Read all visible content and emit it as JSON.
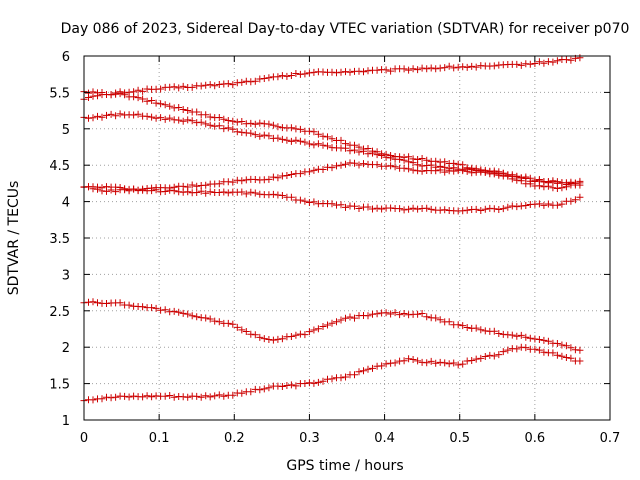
{
  "chart_data": {
    "type": "scatter",
    "title": "Day 086 of 2023, Sidereal Day-to-day VTEC variation (SDTVAR) for receiver p070",
    "xlabel": "GPS time / hours",
    "ylabel": "SDTVAR / TECUs",
    "xlim": [
      0,
      0.7
    ],
    "ylim": [
      1,
      6
    ],
    "x_ticks": [
      "0",
      "0.1",
      "0.2",
      "0.3",
      "0.4",
      "0.5",
      "0.6",
      "0.7"
    ],
    "y_ticks": [
      "1",
      "1.5",
      "2",
      "2.5",
      "3",
      "3.5",
      "4",
      "4.5",
      "5",
      "5.5",
      "6"
    ],
    "grid": true,
    "marker": "+",
    "color": "#cc0000",
    "series_control_points": [
      {
        "name": "series-1",
        "points": [
          [
            0,
            5.42
          ],
          [
            0.05,
            5.5
          ],
          [
            0.1,
            5.55
          ],
          [
            0.2,
            5.62
          ],
          [
            0.25,
            5.7
          ],
          [
            0.3,
            5.77
          ],
          [
            0.4,
            5.8
          ],
          [
            0.45,
            5.83
          ],
          [
            0.5,
            5.85
          ],
          [
            0.55,
            5.86
          ],
          [
            0.6,
            5.9
          ],
          [
            0.66,
            5.97
          ]
        ]
      },
      {
        "name": "series-2",
        "points": [
          [
            0,
            5.5
          ],
          [
            0.05,
            5.47
          ],
          [
            0.1,
            5.35
          ],
          [
            0.15,
            5.22
          ],
          [
            0.2,
            5.1
          ],
          [
            0.25,
            5.05
          ],
          [
            0.3,
            4.97
          ],
          [
            0.35,
            4.8
          ],
          [
            0.4,
            4.65
          ],
          [
            0.45,
            4.58
          ],
          [
            0.5,
            4.5
          ],
          [
            0.55,
            4.4
          ],
          [
            0.6,
            4.28
          ],
          [
            0.66,
            4.22
          ]
        ]
      },
      {
        "name": "series-3",
        "points": [
          [
            0,
            5.15
          ],
          [
            0.03,
            5.18
          ],
          [
            0.06,
            5.2
          ],
          [
            0.1,
            5.15
          ],
          [
            0.15,
            5.1
          ],
          [
            0.2,
            4.98
          ],
          [
            0.25,
            4.88
          ],
          [
            0.3,
            4.8
          ],
          [
            0.35,
            4.72
          ],
          [
            0.4,
            4.62
          ],
          [
            0.45,
            4.5
          ],
          [
            0.5,
            4.45
          ],
          [
            0.55,
            4.4
          ],
          [
            0.6,
            4.3
          ],
          [
            0.66,
            4.25
          ]
        ]
      },
      {
        "name": "series-4",
        "points": [
          [
            0,
            4.2
          ],
          [
            0.03,
            4.15
          ],
          [
            0.05,
            4.15
          ],
          [
            0.1,
            4.18
          ],
          [
            0.15,
            4.22
          ],
          [
            0.2,
            4.28
          ],
          [
            0.25,
            4.32
          ],
          [
            0.3,
            4.42
          ],
          [
            0.35,
            4.52
          ],
          [
            0.4,
            4.5
          ],
          [
            0.45,
            4.42
          ],
          [
            0.5,
            4.42
          ],
          [
            0.55,
            4.38
          ],
          [
            0.6,
            4.22
          ],
          [
            0.63,
            4.18
          ],
          [
            0.66,
            4.27
          ]
        ]
      },
      {
        "name": "series-5",
        "points": [
          [
            0,
            4.2
          ],
          [
            0.03,
            4.2
          ],
          [
            0.05,
            4.18
          ],
          [
            0.1,
            4.15
          ],
          [
            0.15,
            4.13
          ],
          [
            0.2,
            4.13
          ],
          [
            0.25,
            4.1
          ],
          [
            0.3,
            4.0
          ],
          [
            0.35,
            3.93
          ],
          [
            0.4,
            3.9
          ],
          [
            0.45,
            3.9
          ],
          [
            0.5,
            3.88
          ],
          [
            0.55,
            3.9
          ],
          [
            0.6,
            3.97
          ],
          [
            0.63,
            3.95
          ],
          [
            0.66,
            4.05
          ]
        ]
      },
      {
        "name": "series-6",
        "points": [
          [
            0,
            2.62
          ],
          [
            0.05,
            2.6
          ],
          [
            0.1,
            2.52
          ],
          [
            0.15,
            2.42
          ],
          [
            0.2,
            2.3
          ],
          [
            0.23,
            2.15
          ],
          [
            0.25,
            2.1
          ],
          [
            0.3,
            2.2
          ],
          [
            0.35,
            2.4
          ],
          [
            0.4,
            2.47
          ],
          [
            0.45,
            2.45
          ],
          [
            0.5,
            2.3
          ],
          [
            0.55,
            2.2
          ],
          [
            0.6,
            2.12
          ],
          [
            0.63,
            2.05
          ],
          [
            0.66,
            1.95
          ]
        ]
      },
      {
        "name": "series-7",
        "points": [
          [
            0,
            1.28
          ],
          [
            0.05,
            1.32
          ],
          [
            0.1,
            1.33
          ],
          [
            0.15,
            1.32
          ],
          [
            0.2,
            1.35
          ],
          [
            0.25,
            1.45
          ],
          [
            0.3,
            1.5
          ],
          [
            0.35,
            1.6
          ],
          [
            0.4,
            1.77
          ],
          [
            0.43,
            1.83
          ],
          [
            0.45,
            1.8
          ],
          [
            0.5,
            1.77
          ],
          [
            0.55,
            1.9
          ],
          [
            0.58,
            2.0
          ],
          [
            0.6,
            1.98
          ],
          [
            0.66,
            1.8
          ]
        ]
      }
    ]
  }
}
